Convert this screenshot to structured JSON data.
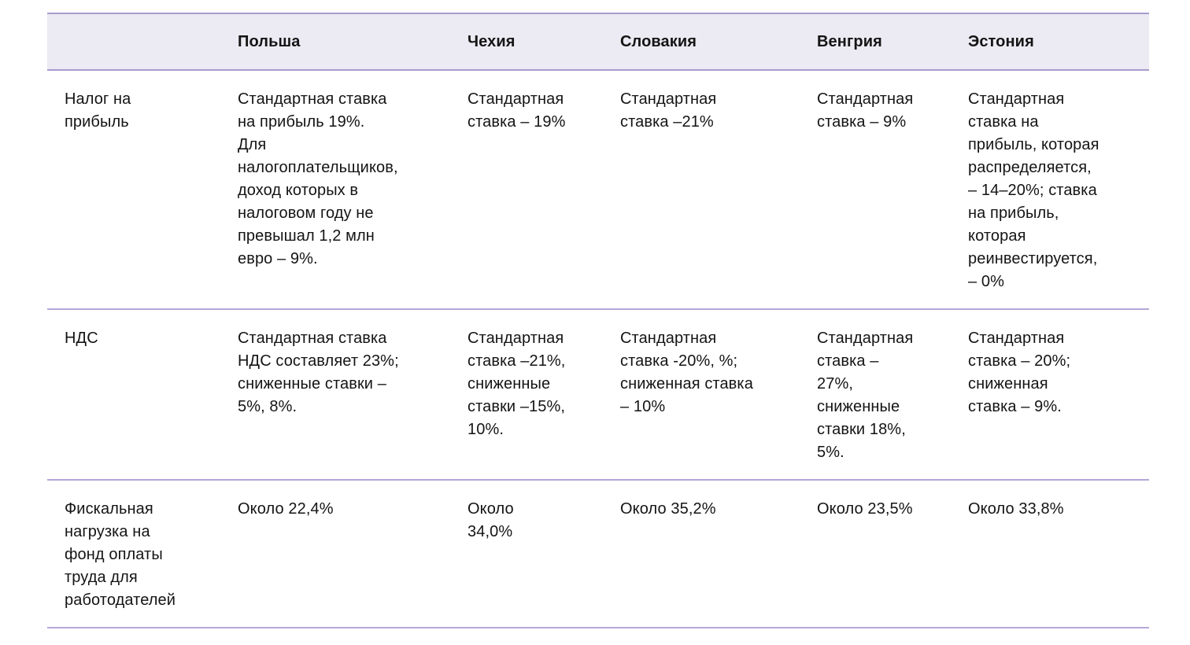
{
  "colors": {
    "header_background": "#ECEAF2",
    "header_border": "#A89CCF",
    "row_divider": "#B5A7D9",
    "text": "#141414",
    "page_background": "#FFFFFF"
  },
  "table": {
    "columns": [
      "",
      "Польша",
      "Чехия",
      "Словакия",
      "Венгрия",
      "Эстония"
    ],
    "rows": [
      {
        "label": "Налог на\nприбыль",
        "cells": [
          "Стандартная ставка\nна прибыль 19%.\nДля\nналогоплательщиков,\nдоход которых в\nналоговом году не\nпревышал 1,2 млн\nевро – 9%.",
          "Стандартная\nставка – 19%",
          "Стандартная\nставка –21%",
          "Стандартная\nставка – 9%",
          "Стандартная\nставка на\nприбыль, которая\nраспределяется,\n– 14–20%; ставка\nна прибыль,\nкоторая\nреинвестируется,\n– 0%"
        ]
      },
      {
        "label": "НДС",
        "cells": [
          "Стандартная ставка\nНДС составляет 23%;\nсниженные ставки –\n5%, 8%.",
          "Стандартная\nставка –21%,\nсниженные\nставки –15%,\n10%.",
          "Стандартная\nставка -20%, %;\nсниженная ставка\n– 10%",
          "Стандартная\nставка –\n27%,\nсниженные\nставки 18%,\n5%.",
          "Стандартная\nставка – 20%;\nсниженная\nставка – 9%."
        ]
      },
      {
        "label": "Фискальная\nнагрузка на\nфонд оплаты\nтруда для\nработодателей",
        "cells": [
          "Около 22,4%",
          "Около\n34,0%",
          "Около 35,2%",
          "Около 23,5%",
          "Около 33,8%"
        ]
      }
    ]
  }
}
